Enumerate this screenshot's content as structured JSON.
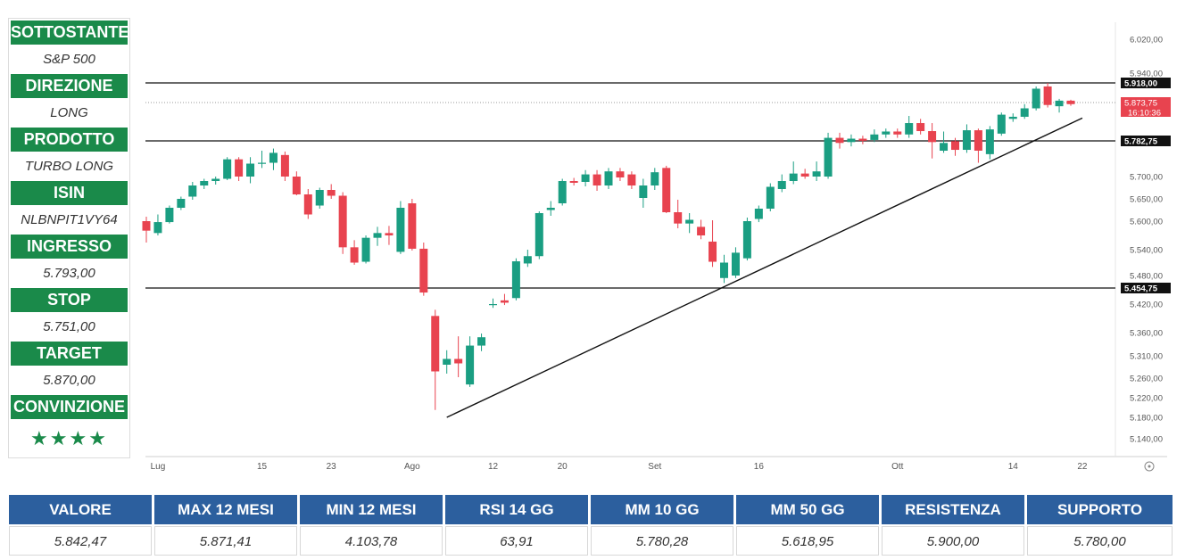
{
  "info": [
    {
      "label": "SOTTOSTANTE",
      "value": "S&P 500"
    },
    {
      "label": "DIREZIONE",
      "value": "LONG"
    },
    {
      "label": "PRODOTTO",
      "value": "TURBO LONG"
    },
    {
      "label": "ISIN",
      "value": "NLBNPIT1VY64"
    },
    {
      "label": "INGRESSO",
      "value": "5.793,00"
    },
    {
      "label": "STOP",
      "value": "5.751,00"
    },
    {
      "label": "TARGET",
      "value": "5.870,00"
    },
    {
      "label": "CONVINZIONE",
      "value": "★★★★",
      "rating": 4
    }
  ],
  "stats": [
    {
      "label": "VALORE",
      "value": "5.842,47"
    },
    {
      "label": "MAX 12 MESI",
      "value": "5.871,41"
    },
    {
      "label": "MIN 12 MESI",
      "value": "4.103,78"
    },
    {
      "label": "RSI 14 GG",
      "value": "63,91"
    },
    {
      "label": "MM 10 GG",
      "value": "5.780,28"
    },
    {
      "label": "MM 50 GG",
      "value": "5.618,95"
    },
    {
      "label": "RESISTENZA",
      "value": "5.900,00"
    },
    {
      "label": "SUPPORTO",
      "value": "5.780,00"
    }
  ],
  "colors": {
    "up": "#1a9e82",
    "down": "#e8434f",
    "label_green": "#1a8a4a",
    "header_blue": "#2c5f9e"
  },
  "chart_data": {
    "type": "candlestick",
    "grid": false,
    "y_ticks": [
      6020,
      5940,
      5700,
      5650,
      5600,
      5540,
      5480,
      5420,
      5360,
      5310,
      5260,
      5220,
      5180,
      5140
    ],
    "y_tick_labels": [
      "6.020,00",
      "5.940,00",
      "5.700,00",
      "5.650,00",
      "5.600,00",
      "5.540,00",
      "5.480,00",
      "5.420,00",
      "5.360,00",
      "5.310,00",
      "5.260,00",
      "5.220,00",
      "5.180,00",
      "5.140,00"
    ],
    "x_ticks": [
      {
        "label": "Lug",
        "index": 1
      },
      {
        "label": "15",
        "index": 10
      },
      {
        "label": "23",
        "index": 16
      },
      {
        "label": "Ago",
        "index": 23
      },
      {
        "label": "12",
        "index": 30
      },
      {
        "label": "20",
        "index": 36
      },
      {
        "label": "Set",
        "index": 44
      },
      {
        "label": "16",
        "index": 53
      },
      {
        "label": "Ott",
        "index": 65
      },
      {
        "label": "14",
        "index": 75
      },
      {
        "label": "22",
        "index": 81
      }
    ],
    "levels": [
      {
        "value": 5918,
        "label": "5.918,00"
      },
      {
        "value": 5782.75,
        "label": "5.782,75"
      },
      {
        "value": 5454.75,
        "label": "5.454,75"
      }
    ],
    "current_price": {
      "value": 5873.75,
      "label": "5.873,75",
      "countdown": "16:10:36"
    },
    "trendline": {
      "from": {
        "index": 26,
        "value": 5180
      },
      "to": {
        "index": 81,
        "value": 5837
      }
    },
    "candles": [
      [
        5600,
        5610,
        5555,
        5580
      ],
      [
        5575,
        5615,
        5570,
        5598
      ],
      [
        5598,
        5635,
        5595,
        5630
      ],
      [
        5630,
        5655,
        5625,
        5650
      ],
      [
        5655,
        5688,
        5648,
        5680
      ],
      [
        5680,
        5695,
        5672,
        5690
      ],
      [
        5690,
        5700,
        5682,
        5695
      ],
      [
        5695,
        5745,
        5692,
        5740
      ],
      [
        5740,
        5745,
        5690,
        5700
      ],
      [
        5700,
        5745,
        5685,
        5730
      ],
      [
        5730,
        5760,
        5720,
        5732
      ],
      [
        5732,
        5765,
        5715,
        5755
      ],
      [
        5750,
        5758,
        5690,
        5700
      ],
      [
        5700,
        5712,
        5658,
        5660
      ],
      [
        5660,
        5672,
        5605,
        5615
      ],
      [
        5635,
        5675,
        5628,
        5670
      ],
      [
        5670,
        5683,
        5650,
        5657
      ],
      [
        5657,
        5665,
        5530,
        5545
      ],
      [
        5545,
        5560,
        5505,
        5510
      ],
      [
        5512,
        5570,
        5508,
        5565
      ],
      [
        5565,
        5588,
        5548,
        5575
      ],
      [
        5575,
        5590,
        5550,
        5570
      ],
      [
        5535,
        5645,
        5530,
        5630
      ],
      [
        5640,
        5650,
        5538,
        5542
      ],
      [
        5542,
        5555,
        5438,
        5445
      ],
      [
        5395,
        5408,
        5195,
        5275
      ],
      [
        5290,
        5322,
        5270,
        5303
      ],
      [
        5303,
        5352,
        5262,
        5293
      ],
      [
        5247,
        5352,
        5242,
        5332
      ],
      [
        5332,
        5358,
        5320,
        5350
      ],
      [
        5418,
        5432,
        5412,
        5420
      ],
      [
        5428,
        5442,
        5418,
        5423
      ],
      [
        5433,
        5520,
        5428,
        5513
      ],
      [
        5508,
        5540,
        5500,
        5525
      ],
      [
        5525,
        5622,
        5518,
        5618
      ],
      [
        5625,
        5645,
        5612,
        5630
      ],
      [
        5640,
        5695,
        5635,
        5690
      ],
      [
        5690,
        5697,
        5680,
        5686
      ],
      [
        5688,
        5715,
        5678,
        5705
      ],
      [
        5705,
        5715,
        5668,
        5680
      ],
      [
        5680,
        5720,
        5672,
        5712
      ],
      [
        5712,
        5720,
        5690,
        5698
      ],
      [
        5705,
        5712,
        5672,
        5680
      ],
      [
        5652,
        5695,
        5630,
        5680
      ],
      [
        5680,
        5720,
        5670,
        5710
      ],
      [
        5720,
        5725,
        5618,
        5620
      ],
      [
        5620,
        5648,
        5585,
        5595
      ],
      [
        5595,
        5618,
        5575,
        5603
      ],
      [
        5588,
        5603,
        5562,
        5570
      ],
      [
        5557,
        5602,
        5500,
        5512
      ],
      [
        5475,
        5528,
        5465,
        5510
      ],
      [
        5480,
        5545,
        5475,
        5533
      ],
      [
        5520,
        5608,
        5515,
        5600
      ],
      [
        5605,
        5635,
        5598,
        5628
      ],
      [
        5628,
        5685,
        5622,
        5677
      ],
      [
        5672,
        5705,
        5665,
        5690
      ],
      [
        5690,
        5735,
        5683,
        5707
      ],
      [
        5707,
        5718,
        5695,
        5700
      ],
      [
        5700,
        5735,
        5690,
        5712
      ],
      [
        5700,
        5802,
        5695,
        5790
      ],
      [
        5790,
        5802,
        5765,
        5778
      ],
      [
        5780,
        5798,
        5770,
        5788
      ],
      [
        5788,
        5795,
        5775,
        5783
      ],
      [
        5785,
        5810,
        5780,
        5798
      ],
      [
        5798,
        5812,
        5790,
        5805
      ],
      [
        5805,
        5812,
        5790,
        5798
      ],
      [
        5798,
        5842,
        5790,
        5825
      ],
      [
        5825,
        5835,
        5798,
        5806
      ],
      [
        5806,
        5825,
        5742,
        5780
      ],
      [
        5760,
        5805,
        5755,
        5778
      ],
      [
        5782,
        5790,
        5748,
        5762
      ],
      [
        5762,
        5822,
        5755,
        5808
      ],
      [
        5808,
        5812,
        5732,
        5760
      ],
      [
        5752,
        5818,
        5740,
        5810
      ],
      [
        5800,
        5850,
        5795,
        5845
      ],
      [
        5835,
        5848,
        5828,
        5840
      ],
      [
        5840,
        5870,
        5835,
        5860
      ],
      [
        5860,
        5910,
        5855,
        5905
      ],
      [
        5910,
        5918,
        5862,
        5868
      ],
      [
        5865,
        5882,
        5850,
        5878
      ],
      [
        5878,
        5880,
        5866,
        5870
      ]
    ]
  }
}
